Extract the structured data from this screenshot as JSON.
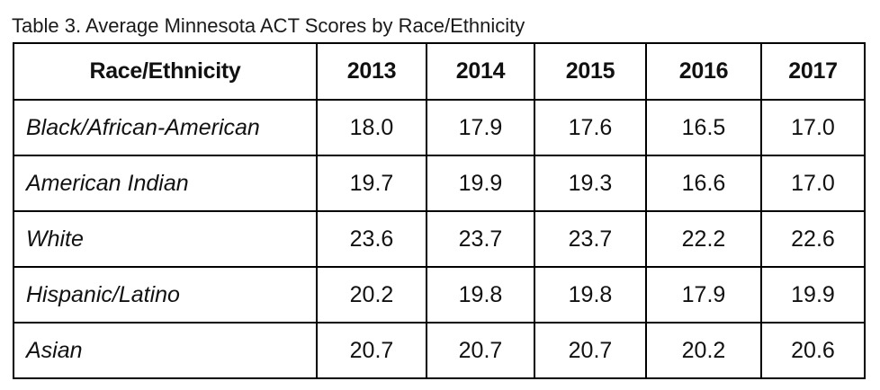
{
  "caption": "Table 3. Average Minnesota ACT Scores by Race/Ethnicity",
  "table": {
    "headers": [
      "Race/Ethnicity",
      "2013",
      "2014",
      "2015",
      "2016",
      "2017"
    ],
    "rows": [
      {
        "group": "Black/African-American",
        "values": [
          "18.0",
          "17.9",
          "17.6",
          "16.5",
          "17.0"
        ]
      },
      {
        "group": "American Indian",
        "values": [
          "19.7",
          "19.9",
          "19.3",
          "16.6",
          "17.0"
        ]
      },
      {
        "group": "White",
        "values": [
          "23.6",
          "23.7",
          "23.7",
          "22.2",
          "22.6"
        ]
      },
      {
        "group": "Hispanic/Latino",
        "values": [
          "20.2",
          "19.8",
          "19.8",
          "17.9",
          "19.9"
        ]
      },
      {
        "group": "Asian",
        "values": [
          "20.7",
          "20.7",
          "20.7",
          "20.2",
          "20.6"
        ]
      }
    ]
  }
}
